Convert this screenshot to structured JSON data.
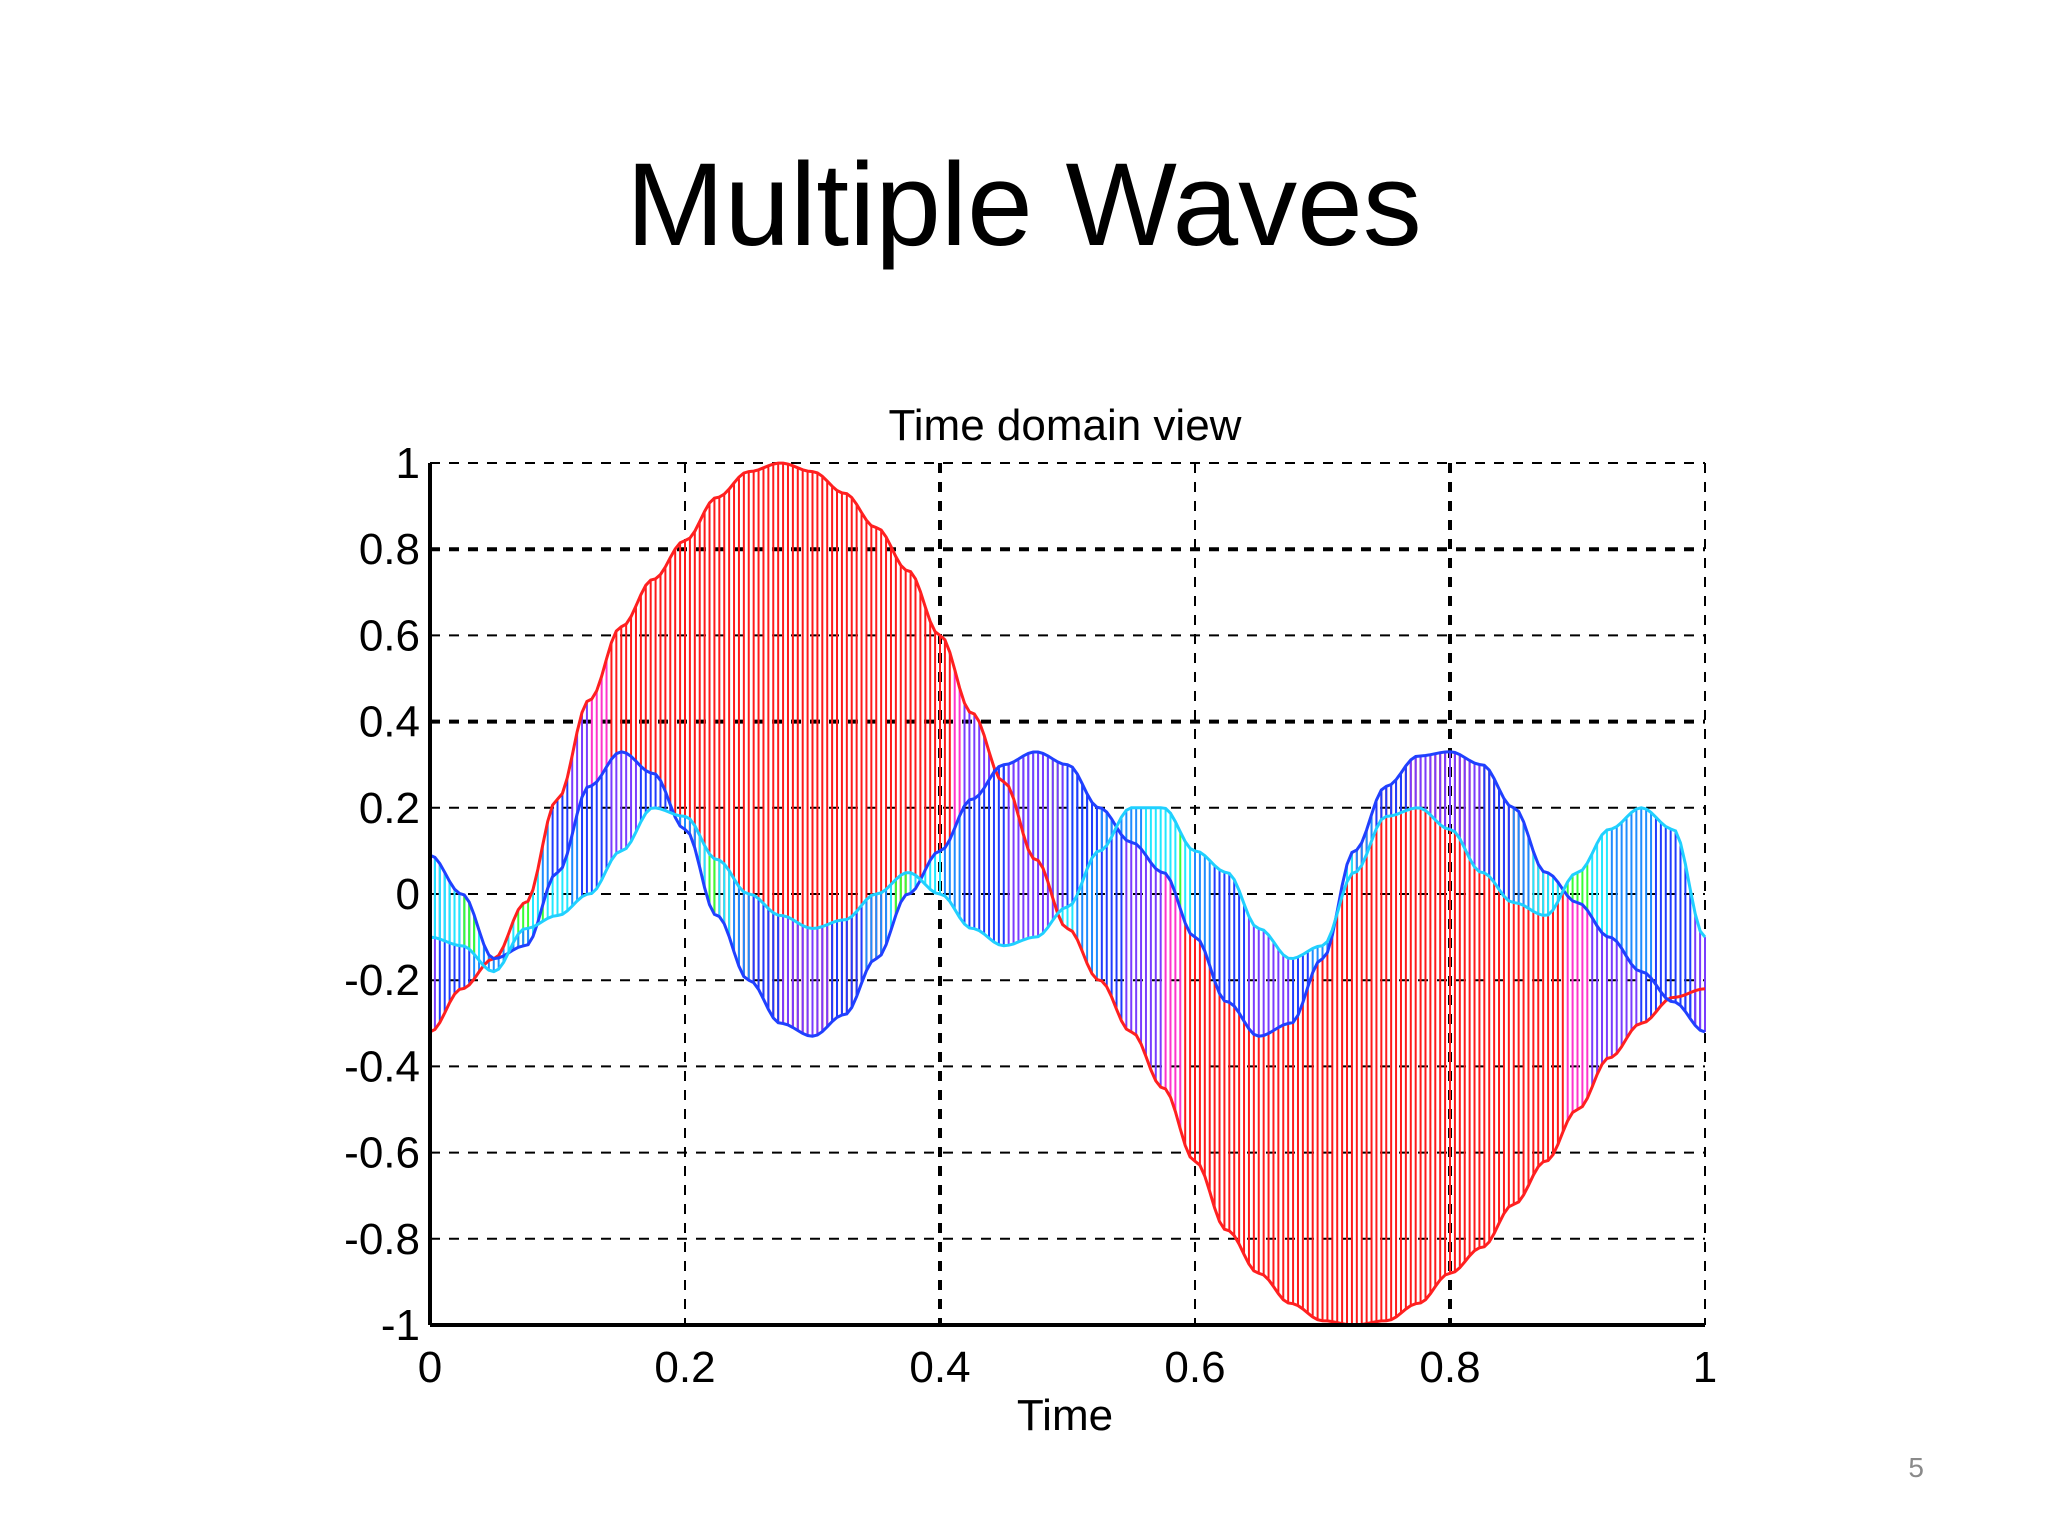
{
  "slide": {
    "title": "Multiple Waves",
    "page_number": "5"
  },
  "chart_data": {
    "type": "area",
    "title": "Time domain view",
    "xlabel": "Time",
    "ylabel": "",
    "xlim": [
      0,
      1
    ],
    "ylim": [
      -1,
      1
    ],
    "x_ticks": [
      "0",
      "0.2",
      "0.4",
      "0.6",
      "0.8",
      "1"
    ],
    "y_ticks": [
      "1",
      "0.8",
      "0.6",
      "0.4",
      "0.2",
      "0",
      "-0.2",
      "-0.4",
      "-0.6",
      "-0.8",
      "-1"
    ],
    "grid": true,
    "series": [
      {
        "x": [
          0,
          0.025,
          0.05,
          0.075,
          0.1,
          0.125,
          0.15,
          0.175,
          0.2,
          0.225,
          0.25,
          0.275,
          0.3,
          0.325,
          0.35,
          0.375,
          0.4,
          0.425,
          0.45,
          0.475,
          0.5,
          0.525,
          0.55,
          0.575,
          0.6,
          0.625,
          0.65,
          0.675,
          0.7,
          0.725,
          0.75,
          0.775,
          0.8,
          0.825,
          0.85,
          0.875,
          0.9,
          0.925,
          0.95,
          0.975,
          1
        ],
        "values": [
          -0.32,
          -0.22,
          -0.15,
          -0.02,
          0.22,
          0.45,
          0.62,
          0.73,
          0.82,
          0.92,
          0.98,
          1.0,
          0.98,
          0.93,
          0.85,
          0.75,
          0.6,
          0.42,
          0.26,
          0.08,
          -0.08,
          -0.2,
          -0.32,
          -0.45,
          -0.62,
          -0.78,
          -0.88,
          -0.95,
          -0.99,
          -1.0,
          -0.99,
          -0.95,
          -0.88,
          -0.82,
          -0.72,
          -0.62,
          -0.5,
          -0.38,
          -0.3,
          -0.24,
          -0.22
        ]
      },
      {
        "x": [
          0,
          0.025,
          0.05,
          0.075,
          0.1,
          0.125,
          0.15,
          0.175,
          0.2,
          0.225,
          0.25,
          0.275,
          0.3,
          0.325,
          0.35,
          0.375,
          0.4,
          0.425,
          0.45,
          0.475,
          0.5,
          0.525,
          0.55,
          0.575,
          0.6,
          0.625,
          0.65,
          0.675,
          0.7,
          0.725,
          0.75,
          0.775,
          0.8,
          0.825,
          0.85,
          0.875,
          0.9,
          0.925,
          0.95,
          0.975,
          1
        ],
        "values": [
          0.09,
          0.0,
          -0.15,
          -0.12,
          0.05,
          0.25,
          0.33,
          0.28,
          0.15,
          -0.05,
          -0.2,
          -0.3,
          -0.33,
          -0.28,
          -0.15,
          0.0,
          0.1,
          0.22,
          0.3,
          0.33,
          0.3,
          0.2,
          0.12,
          0.05,
          -0.1,
          -0.25,
          -0.33,
          -0.3,
          -0.15,
          0.1,
          0.25,
          0.32,
          0.33,
          0.3,
          0.2,
          0.05,
          -0.02,
          -0.1,
          -0.18,
          -0.25,
          -0.32
        ]
      },
      {
        "x": [
          0,
          0.025,
          0.05,
          0.075,
          0.1,
          0.125,
          0.15,
          0.175,
          0.2,
          0.225,
          0.25,
          0.275,
          0.3,
          0.325,
          0.35,
          0.375,
          0.4,
          0.425,
          0.45,
          0.475,
          0.5,
          0.525,
          0.55,
          0.575,
          0.6,
          0.625,
          0.65,
          0.675,
          0.7,
          0.725,
          0.75,
          0.775,
          0.8,
          0.825,
          0.85,
          0.875,
          0.9,
          0.925,
          0.95,
          0.975,
          1
        ],
        "values": [
          -0.1,
          -0.12,
          -0.18,
          -0.08,
          -0.05,
          0.0,
          0.1,
          0.2,
          0.18,
          0.08,
          0.0,
          -0.05,
          -0.08,
          -0.06,
          0.0,
          0.05,
          0.0,
          -0.08,
          -0.12,
          -0.1,
          -0.03,
          0.1,
          0.2,
          0.2,
          0.1,
          0.05,
          -0.08,
          -0.15,
          -0.12,
          0.05,
          0.18,
          0.2,
          0.15,
          0.05,
          -0.02,
          -0.05,
          0.05,
          0.15,
          0.2,
          0.15,
          -0.1
        ]
      }
    ]
  }
}
